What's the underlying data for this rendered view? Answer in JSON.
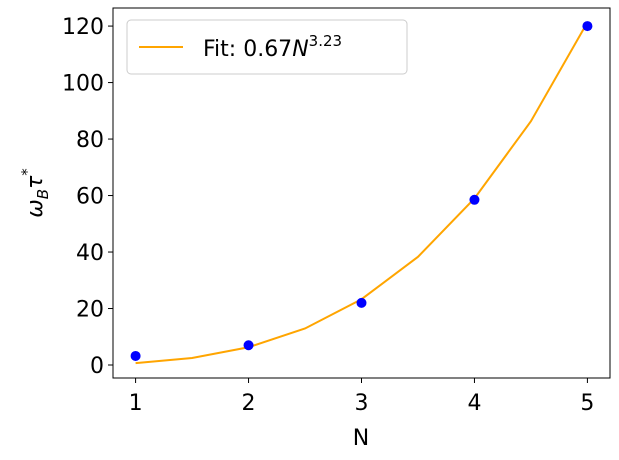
{
  "chart_data": {
    "type": "scatter",
    "xlabel": "N",
    "ylabel": [
      "ω",
      "B",
      "τ",
      "*"
    ],
    "xlim": [
      0.8,
      5.2
    ],
    "ylim": [
      -4.6,
      126.4
    ],
    "xticks": [
      1,
      2,
      3,
      4,
      5
    ],
    "yticks": [
      0,
      20,
      40,
      60,
      80,
      100,
      120
    ],
    "legend": "upper left",
    "series": [
      {
        "kind": "line",
        "name": [
          "Fit: 0.67",
          "N",
          "3.23"
        ],
        "color": "#ffa500",
        "x": [
          1,
          1.5,
          2,
          2.5,
          3,
          3.5,
          4,
          4.5,
          5
        ],
        "values": [
          0.67,
          2.48,
          6.29,
          12.93,
          23.29,
          38.3,
          58.96,
          86.3,
          121.3
        ]
      },
      {
        "kind": "scatter",
        "color": "#0000ff",
        "x": [
          1,
          2,
          3,
          4,
          5
        ],
        "values": [
          3.2,
          7,
          22,
          58.5,
          120
        ]
      }
    ]
  }
}
